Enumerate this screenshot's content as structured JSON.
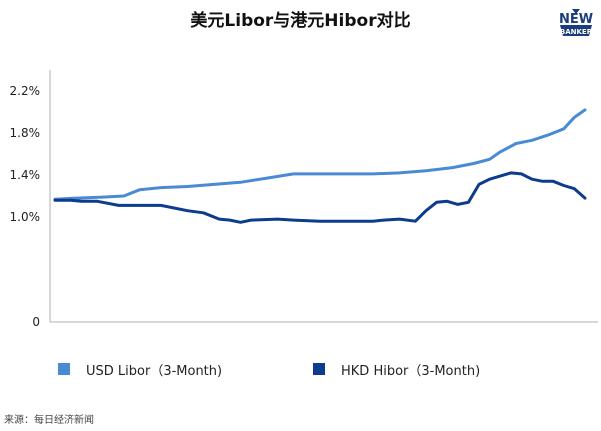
{
  "title": "美元Libor与港元Hibor对比",
  "logo": {
    "line1": "NEW",
    "line2": "BANKER"
  },
  "source": "来源：每日经济新闻",
  "chart_data": {
    "type": "line",
    "title": "美元Libor与港元Hibor对比",
    "ylim": [
      0,
      2.4
    ],
    "yticks": [
      {
        "value": 0,
        "label": "0"
      },
      {
        "value": 1.0,
        "label": "1.0%"
      },
      {
        "value": 1.4,
        "label": "1.4%"
      },
      {
        "value": 1.8,
        "label": "1.8%"
      },
      {
        "value": 2.2,
        "label": "2.2%"
      }
    ],
    "grid": false,
    "legend": "bottom",
    "series": [
      {
        "name": "USD Libor（3-Month)",
        "color": "#4a8ad4",
        "x": [
          0,
          0.04,
          0.09,
          0.13,
          0.16,
          0.2,
          0.25,
          0.3,
          0.35,
          0.4,
          0.45,
          0.5,
          0.55,
          0.6,
          0.65,
          0.7,
          0.75,
          0.79,
          0.82,
          0.84,
          0.87,
          0.9,
          0.93,
          0.96,
          0.98,
          1.0
        ],
        "values": [
          1.17,
          1.18,
          1.19,
          1.2,
          1.26,
          1.28,
          1.29,
          1.31,
          1.33,
          1.37,
          1.41,
          1.41,
          1.41,
          1.41,
          1.42,
          1.44,
          1.47,
          1.51,
          1.55,
          1.62,
          1.7,
          1.73,
          1.78,
          1.84,
          1.95,
          2.02
        ]
      },
      {
        "name": "HKD Hibor（3-Month)",
        "color": "#0d3b8e",
        "x": [
          0,
          0.03,
          0.05,
          0.08,
          0.12,
          0.15,
          0.2,
          0.25,
          0.28,
          0.31,
          0.33,
          0.35,
          0.37,
          0.42,
          0.45,
          0.5,
          0.55,
          0.6,
          0.62,
          0.65,
          0.68,
          0.7,
          0.72,
          0.74,
          0.76,
          0.78,
          0.8,
          0.82,
          0.84,
          0.86,
          0.88,
          0.9,
          0.92,
          0.94,
          0.96,
          0.98,
          1.0
        ],
        "values": [
          1.16,
          1.16,
          1.15,
          1.15,
          1.11,
          1.11,
          1.11,
          1.06,
          1.04,
          0.98,
          0.97,
          0.95,
          0.97,
          0.98,
          0.97,
          0.96,
          0.96,
          0.96,
          0.97,
          0.98,
          0.96,
          1.06,
          1.14,
          1.15,
          1.12,
          1.14,
          1.31,
          1.36,
          1.39,
          1.42,
          1.41,
          1.36,
          1.34,
          1.34,
          1.3,
          1.27,
          1.18
        ]
      }
    ]
  }
}
